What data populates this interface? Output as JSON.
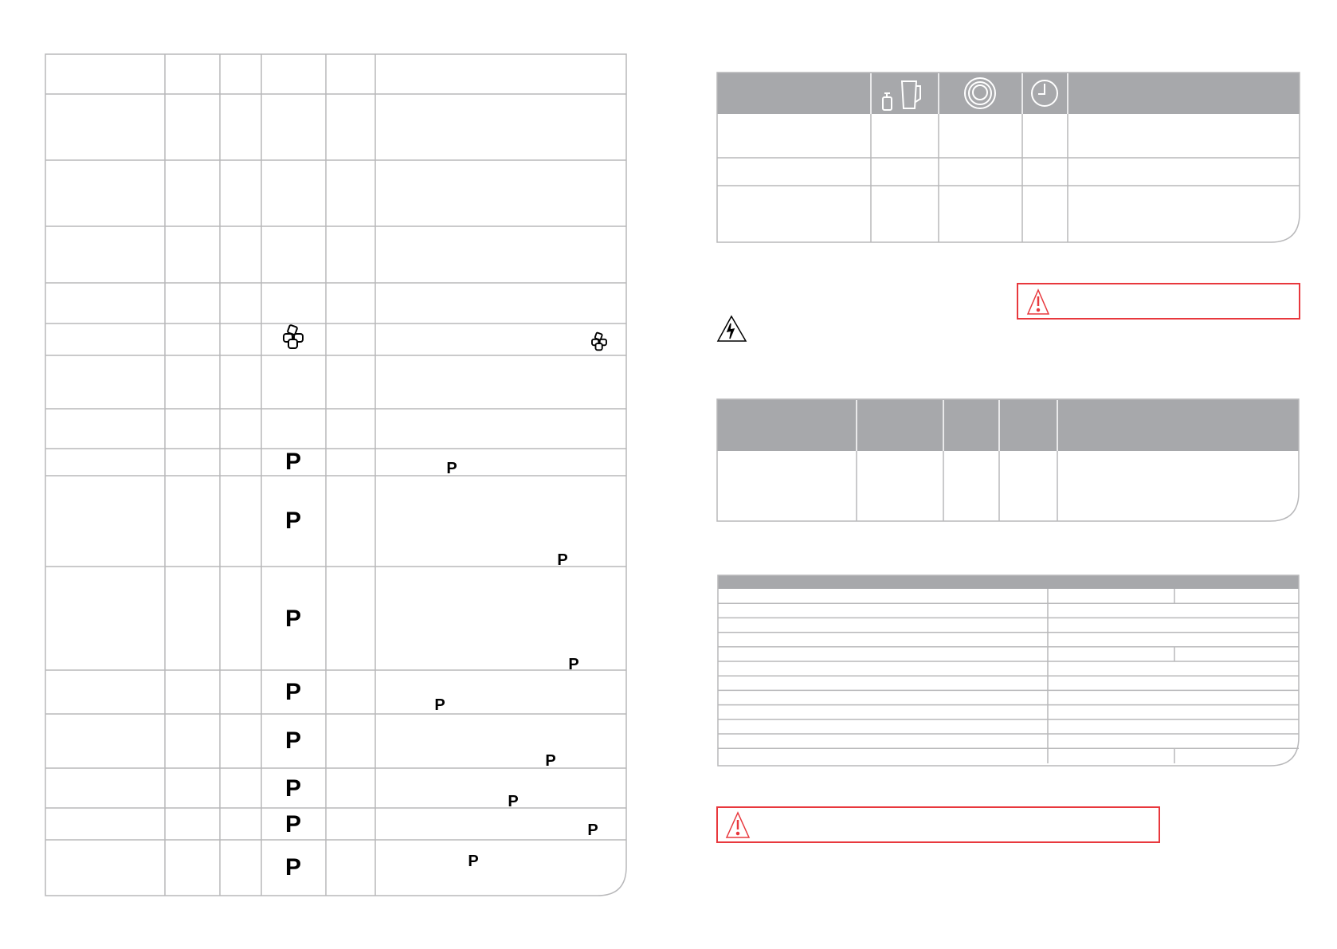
{
  "colors": {
    "grid_line": "#b8b8ba",
    "header_fill": "#a7a8ab",
    "warning_red": "#e8383d",
    "icon_black": "#000000"
  },
  "left_table": {
    "icons": [
      "ice-cubes-icon",
      "ice-cubes-icon"
    ],
    "program_marks": [
      "P",
      "P",
      "P",
      "P",
      "P",
      "P",
      "P",
      "P"
    ],
    "note_marks": [
      "P",
      "P",
      "P",
      "P",
      "P",
      "P",
      "P",
      "P"
    ]
  },
  "right_table_top": {
    "header_icons": [
      "weight-and-jug-icon",
      "speed-dial-icon",
      "clock-icon"
    ]
  },
  "warnings": {
    "icons": [
      "warning-triangle-icon",
      "electric-shock-warning-icon",
      "warning-triangle-icon"
    ]
  }
}
